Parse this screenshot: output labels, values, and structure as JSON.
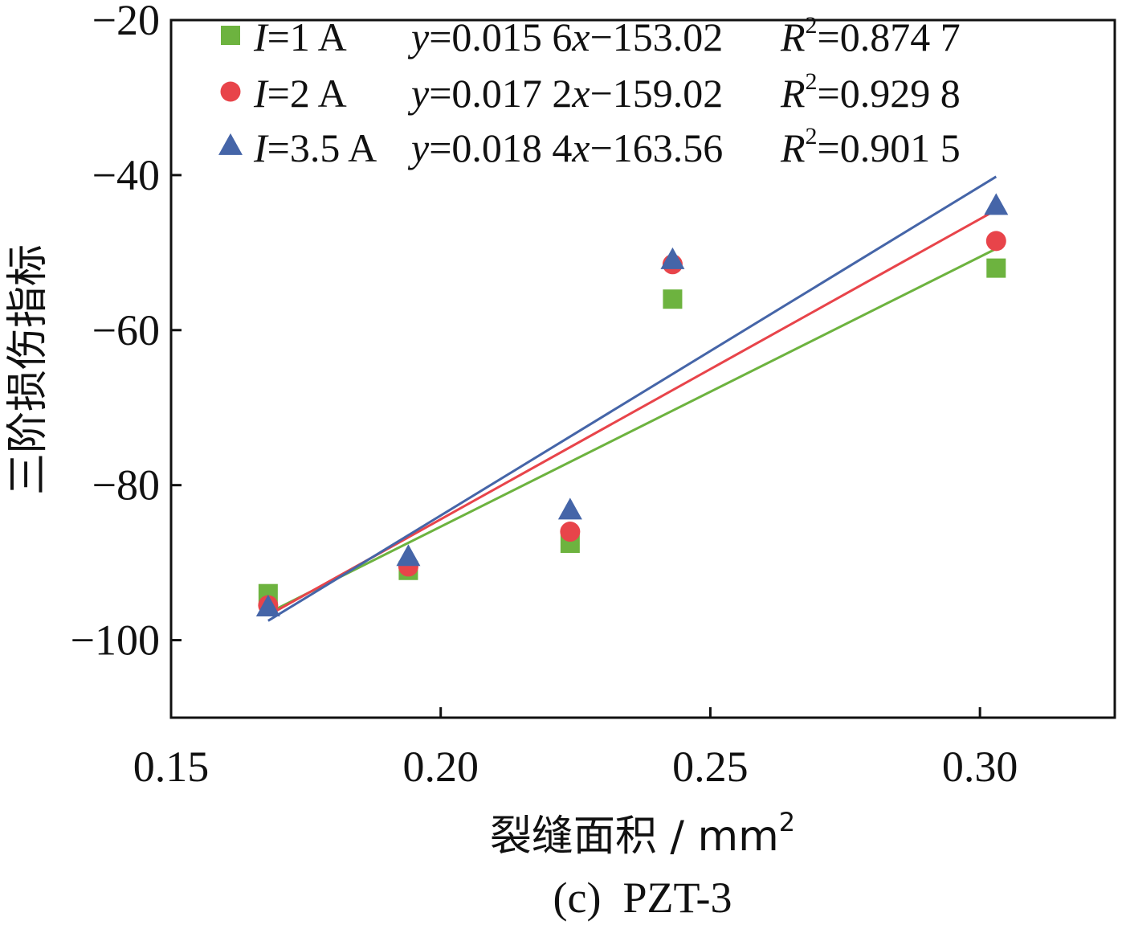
{
  "chart_data": {
    "type": "scatter",
    "title": "",
    "caption": "(c)  PZT-3",
    "xlabel": "裂缝面积 / mm",
    "xlabel_sup": "2",
    "ylabel": "三阶损伤指标",
    "xlim": [
      0.15,
      0.325
    ],
    "ylim": [
      -110,
      -20
    ],
    "xticks": [
      0.15,
      0.2,
      0.25,
      0.3
    ],
    "xtick_labels": [
      "0.15",
      "0.20",
      "0.25",
      "0.30"
    ],
    "yticks": [
      -20,
      -40,
      -60,
      -80,
      -100
    ],
    "ytick_labels": [
      "−20",
      "−40",
      "−60",
      "−80",
      "−100"
    ],
    "series": [
      {
        "name": "I=1 A",
        "var": "I",
        "value_label": "=1 A",
        "marker": "square",
        "color": "#6db33f",
        "x": [
          0.168,
          0.194,
          0.224,
          0.243,
          0.303
        ],
        "y": [
          -94,
          -91,
          -87.5,
          -56,
          -52
        ],
        "fit": {
          "slope_label": "=0.015 6",
          "intercept_label": "−153.02",
          "r2_label": "=0.874 7",
          "x0": 0.168,
          "y0": -96.5,
          "x1": 0.303,
          "y1": -49.5
        }
      },
      {
        "name": "I=2 A",
        "var": "I",
        "value_label": "=2 A",
        "marker": "circle",
        "color": "#e8444a",
        "x": [
          0.168,
          0.194,
          0.224,
          0.243,
          0.303
        ],
        "y": [
          -95.5,
          -90.5,
          -86,
          -51.5,
          -48.5
        ],
        "fit": {
          "slope_label": "=0.017 2",
          "intercept_label": "−159.02",
          "r2_label": "=0.929 8",
          "x0": 0.168,
          "y0": -96.8,
          "x1": 0.303,
          "y1": -44.5
        }
      },
      {
        "name": "I=3.5 A",
        "var": "I",
        "value_label": "=3.5 A",
        "marker": "triangle",
        "color": "#4565a8",
        "x": [
          0.168,
          0.194,
          0.224,
          0.243,
          0.303
        ],
        "y": [
          -95.8,
          -89.3,
          -83.3,
          -51,
          -44
        ],
        "fit": {
          "slope_label": "=0.018 4",
          "intercept_label": "−163.56",
          "r2_label": "=0.901 5",
          "x0": 0.168,
          "y0": -97.5,
          "x1": 0.303,
          "y1": -40.2
        }
      }
    ],
    "legend": {
      "placement": "top-left",
      "y_var": "y",
      "x_var": "x",
      "r_var": "R",
      "r_sup": "2"
    }
  }
}
